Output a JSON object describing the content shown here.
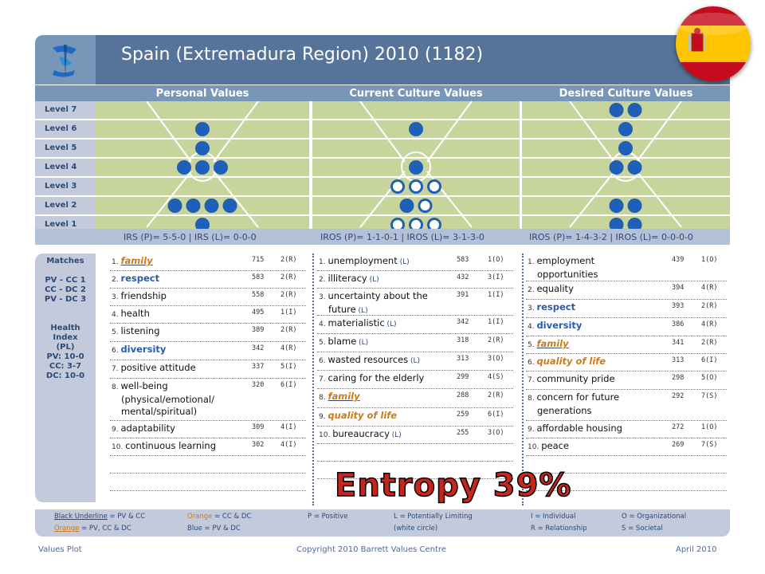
{
  "title": "Spain (Extremadura Region) 2010  (1182)",
  "columns": [
    "Personal Values",
    "Current Culture Values",
    "Desired Culture Values"
  ],
  "levels": [
    "Level 7",
    "Level 6",
    "Level 5",
    "Level 4",
    "Level 3",
    "Level 2",
    "Level 1"
  ],
  "dot_counts": {
    "personal": [
      0,
      1,
      1,
      3,
      0,
      4,
      1
    ],
    "current": [
      0,
      1,
      0,
      1,
      3,
      2,
      3
    ],
    "desired": [
      2,
      1,
      1,
      2,
      0,
      2,
      2
    ]
  },
  "irs": {
    "personal": "IRS (P)= 5-5-0 | IRS (L)= 0-0-0",
    "current": "IROS (P)= 1-1-0-1 | IROS (L)= 3-1-3-0",
    "desired": "IROS (P)= 1-4-3-2 | IROS (L)= 0-0-0-0"
  },
  "sidebar": {
    "matches_title": "Matches",
    "matches": [
      "PV - CC   1",
      "CC - DC   2",
      "PV - DC   3"
    ],
    "health_title": "Health Index (PL)",
    "health": [
      "PV: 10-0",
      "CC: 3-7",
      "DC: 10-0"
    ]
  },
  "personal_values": [
    {
      "num": "1.",
      "text": "family",
      "votes": "715",
      "code": "2(R)",
      "style": "orange-u"
    },
    {
      "num": "2.",
      "text": "respect",
      "votes": "583",
      "code": "2(R)",
      "style": "blue"
    },
    {
      "num": "3.",
      "text": "friendship",
      "votes": "558",
      "code": "2(R)",
      "style": ""
    },
    {
      "num": "4.",
      "text": "health",
      "votes": "495",
      "code": "1(I)",
      "style": ""
    },
    {
      "num": "5.",
      "text": "listening",
      "votes": "389",
      "code": "2(R)",
      "style": ""
    },
    {
      "num": "6.",
      "text": "diversity",
      "votes": "342",
      "code": "4(R)",
      "style": "blue"
    },
    {
      "num": "7.",
      "text": "positive attitude",
      "votes": "337",
      "code": "5(I)",
      "style": ""
    },
    {
      "num": "8.",
      "text": "well-being",
      "text2": "(physical/emotional/",
      "text3": "mental/spiritual)",
      "votes": "320",
      "code": "6(I)",
      "style": ""
    },
    {
      "num": "9.",
      "text": "adaptability",
      "votes": "309",
      "code": "4(I)",
      "style": ""
    },
    {
      "num": "10.",
      "text": "continuous  learning",
      "votes": "302",
      "code": "4(I)",
      "style": ""
    }
  ],
  "current_values": [
    {
      "num": "1.",
      "text": "unemployment",
      "lim": "(L)",
      "votes": "583",
      "code": "1(O)"
    },
    {
      "num": "2.",
      "text": "illiteracy",
      "lim": "(L)",
      "votes": "432",
      "code": "3(I)"
    },
    {
      "num": "3.",
      "text": "uncertainty  about  the",
      "text2": "future",
      "lim": "(L)",
      "votes": "391",
      "code": "1(I)"
    },
    {
      "num": "4.",
      "text": "materialistic",
      "lim": "(L)",
      "votes": "342",
      "code": "1(I)"
    },
    {
      "num": "5.",
      "text": "blame",
      "lim": "(L)",
      "votes": "318",
      "code": "2(R)"
    },
    {
      "num": "6.",
      "text": "wasted resources",
      "lim": "(L)",
      "votes": "313",
      "code": "3(O)"
    },
    {
      "num": "7.",
      "text": "caring for the elderly",
      "lim": "",
      "votes": "299",
      "code": "4(S)"
    },
    {
      "num": "8.",
      "text": "family",
      "lim": "",
      "votes": "288",
      "code": "2(R)",
      "style": "orange-u"
    },
    {
      "num": "9.",
      "text": "quality of life",
      "lim": "",
      "votes": "259",
      "code": "6(I)",
      "style": "orange"
    },
    {
      "num": "10.",
      "text": "bureaucracy",
      "lim": "(L)",
      "votes": "255",
      "code": "3(O)"
    }
  ],
  "desired_values": [
    {
      "num": "1.",
      "text": "employment",
      "text2": "opportunities",
      "votes": "439",
      "code": "1(O)",
      "style": ""
    },
    {
      "num": "2.",
      "text": "equality",
      "votes": "394",
      "code": "4(R)",
      "style": ""
    },
    {
      "num": "3.",
      "text": "respect",
      "votes": "393",
      "code": "2(R)",
      "style": "blue"
    },
    {
      "num": "4.",
      "text": "diversity",
      "votes": "386",
      "code": "4(R)",
      "style": "blue"
    },
    {
      "num": "5.",
      "text": "family",
      "votes": "341",
      "code": "2(R)",
      "style": "orange-u"
    },
    {
      "num": "6.",
      "text": "quality of life",
      "votes": "313",
      "code": "6(I)",
      "style": "orange"
    },
    {
      "num": "7.",
      "text": "community pride",
      "votes": "298",
      "code": "5(O)",
      "style": ""
    },
    {
      "num": "8.",
      "text": "concern for future",
      "text2": "generations",
      "votes": "292",
      "code": "7(S)",
      "style": ""
    },
    {
      "num": "9.",
      "text": "affordable housing",
      "votes": "272",
      "code": "1(O)",
      "style": ""
    },
    {
      "num": "10.",
      "text": "peace",
      "votes": "269",
      "code": "7(S)",
      "style": ""
    }
  ],
  "entropy": "Entropy 39%",
  "legend": {
    "a1": "Black Underline",
    "a1b": " = PV & CC",
    "a2": "Orange",
    "a2b": " = PV, CC & DC",
    "b1": "Orange = CC & DC",
    "b2": "Blue = PV & DC",
    "c1": "P = Positive",
    "d1": "L = Potentially Limiting",
    "d2": "(white circle)",
    "e1": "I = Individual",
    "e2": "R = Relationship",
    "f1": "O = Organizational",
    "f2": "S = Societal"
  },
  "footer": {
    "left": "Values Plot",
    "center": "Copyright 2010 Barrett Values Centre",
    "right": "April 2010"
  },
  "colors": {
    "dot": "#1f5fb8",
    "band": "#c7d59c",
    "title_bar": "#56749a",
    "entropy": "#c8251c",
    "orange": "#cc7a1a"
  }
}
